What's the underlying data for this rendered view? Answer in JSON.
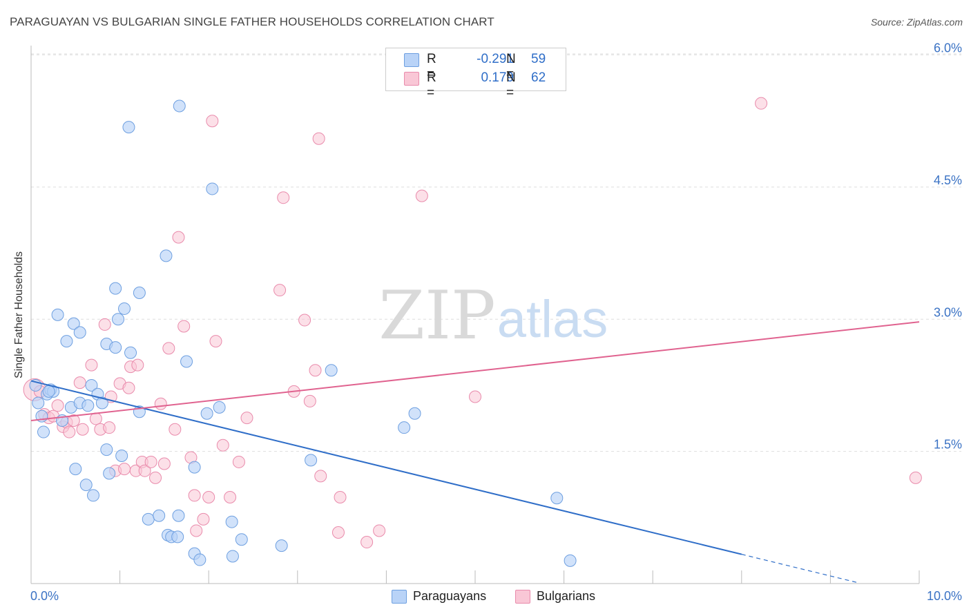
{
  "title": "PARAGUAYAN VS BULGARIAN SINGLE FATHER HOUSEHOLDS CORRELATION CHART",
  "source": "Source: ZipAtlas.com",
  "watermark": {
    "zip": "ZIP",
    "atlas": "atlas"
  },
  "colors": {
    "paraguayans_fill": "#b9d3f7",
    "paraguayans_stroke": "#6d9fe0",
    "paraguayans_line": "#2f6ec8",
    "bulgarians_fill": "#f9c7d6",
    "bulgarians_stroke": "#e98aab",
    "bulgarians_line": "#e0628f",
    "tick_label": "#3a72c4",
    "grid": "#dddddd"
  },
  "legend": {
    "rows": [
      {
        "label": "R =",
        "r_value": "-0.291",
        "n_label": "N =",
        "n_value": "59"
      },
      {
        "label": "R =",
        "r_value": "0.179",
        "n_label": "N =",
        "n_value": "62"
      }
    ]
  },
  "bottom_legend": {
    "paraguayans": "Paraguayans",
    "bulgarians": "Bulgarians"
  },
  "chart_data": {
    "type": "scatter",
    "title": "PARAGUAYAN VS BULGARIAN SINGLE FATHER HOUSEHOLDS CORRELATION CHART",
    "xlabel": "",
    "ylabel": "Single Father Households",
    "xlim": [
      0,
      10
    ],
    "ylim": [
      0,
      6.2
    ],
    "x_tick_labels": [
      "0.0%",
      "10.0%"
    ],
    "y_ticks": [
      1.5,
      3.0,
      4.5,
      6.0
    ],
    "y_tick_labels": [
      "1.5%",
      "3.0%",
      "4.5%",
      "6.0%"
    ],
    "grid": true,
    "series": [
      {
        "name": "Paraguayans",
        "points": [
          [
            0.05,
            2.25
          ],
          [
            0.08,
            2.05
          ],
          [
            0.12,
            1.9
          ],
          [
            0.14,
            1.72
          ],
          [
            0.18,
            2.15
          ],
          [
            0.22,
            2.2
          ],
          [
            0.25,
            2.18
          ],
          [
            0.3,
            3.05
          ],
          [
            0.35,
            1.85
          ],
          [
            0.4,
            2.75
          ],
          [
            0.45,
            2.0
          ],
          [
            0.48,
            2.95
          ],
          [
            0.5,
            1.3
          ],
          [
            0.55,
            2.05
          ],
          [
            0.55,
            2.85
          ],
          [
            0.62,
            1.12
          ],
          [
            0.64,
            2.02
          ],
          [
            0.68,
            2.25
          ],
          [
            0.7,
            1.0
          ],
          [
            0.75,
            2.15
          ],
          [
            0.8,
            2.05
          ],
          [
            0.85,
            1.52
          ],
          [
            0.85,
            2.72
          ],
          [
            0.88,
            1.25
          ],
          [
            0.95,
            3.35
          ],
          [
            0.95,
            2.68
          ],
          [
            0.98,
            3.0
          ],
          [
            1.02,
            1.45
          ],
          [
            1.05,
            3.12
          ],
          [
            1.1,
            5.18
          ],
          [
            1.12,
            2.62
          ],
          [
            1.22,
            1.95
          ],
          [
            1.22,
            3.3
          ],
          [
            1.32,
            0.73
          ],
          [
            1.44,
            0.77
          ],
          [
            1.52,
            3.72
          ],
          [
            1.54,
            0.55
          ],
          [
            1.58,
            0.53
          ],
          [
            1.66,
            0.77
          ],
          [
            1.67,
            5.42
          ],
          [
            1.75,
            2.52
          ],
          [
            1.84,
            1.32
          ],
          [
            1.84,
            0.34
          ],
          [
            1.9,
            0.27
          ],
          [
            1.98,
            1.93
          ],
          [
            2.04,
            4.48
          ],
          [
            2.12,
            2.0
          ],
          [
            2.26,
            0.7
          ],
          [
            2.27,
            0.31
          ],
          [
            2.37,
            0.5
          ],
          [
            2.82,
            0.43
          ],
          [
            3.15,
            1.4
          ],
          [
            3.38,
            2.42
          ],
          [
            4.2,
            1.77
          ],
          [
            4.32,
            1.93
          ],
          [
            5.92,
            0.97
          ],
          [
            6.07,
            0.26
          ],
          [
            1.65,
            0.53
          ],
          [
            0.2,
            2.18
          ]
        ]
      },
      {
        "name": "Bulgarians",
        "points": [
          [
            0.04,
            2.2
          ],
          [
            0.1,
            2.18
          ],
          [
            0.15,
            1.92
          ],
          [
            0.2,
            1.88
          ],
          [
            0.25,
            1.9
          ],
          [
            0.3,
            2.02
          ],
          [
            0.36,
            1.78
          ],
          [
            0.4,
            1.83
          ],
          [
            0.43,
            1.72
          ],
          [
            0.48,
            1.85
          ],
          [
            0.55,
            2.28
          ],
          [
            0.58,
            1.75
          ],
          [
            0.68,
            2.48
          ],
          [
            0.73,
            1.87
          ],
          [
            0.78,
            1.75
          ],
          [
            0.83,
            2.94
          ],
          [
            0.88,
            1.77
          ],
          [
            0.9,
            2.12
          ],
          [
            0.95,
            1.28
          ],
          [
            1.0,
            2.27
          ],
          [
            1.05,
            1.3
          ],
          [
            1.1,
            2.22
          ],
          [
            1.12,
            2.46
          ],
          [
            1.18,
            1.28
          ],
          [
            1.2,
            2.48
          ],
          [
            1.25,
            1.38
          ],
          [
            1.28,
            1.28
          ],
          [
            1.35,
            1.38
          ],
          [
            1.4,
            1.2
          ],
          [
            1.46,
            2.04
          ],
          [
            1.5,
            1.36
          ],
          [
            1.55,
            2.67
          ],
          [
            1.62,
            1.75
          ],
          [
            1.66,
            3.93
          ],
          [
            1.72,
            2.92
          ],
          [
            1.8,
            1.43
          ],
          [
            1.84,
            1.0
          ],
          [
            1.86,
            0.6
          ],
          [
            1.94,
            0.73
          ],
          [
            2.0,
            0.98
          ],
          [
            2.04,
            5.25
          ],
          [
            2.08,
            2.75
          ],
          [
            2.16,
            1.57
          ],
          [
            2.24,
            0.98
          ],
          [
            2.34,
            1.38
          ],
          [
            2.43,
            1.88
          ],
          [
            2.8,
            3.33
          ],
          [
            2.84,
            4.38
          ],
          [
            2.96,
            2.18
          ],
          [
            3.08,
            2.99
          ],
          [
            3.14,
            2.07
          ],
          [
            3.2,
            2.42
          ],
          [
            3.24,
            5.05
          ],
          [
            3.26,
            1.22
          ],
          [
            3.46,
            0.58
          ],
          [
            3.48,
            0.98
          ],
          [
            3.78,
            0.47
          ],
          [
            3.92,
            0.6
          ],
          [
            4.4,
            4.4
          ],
          [
            5.0,
            2.12
          ],
          [
            8.22,
            5.45
          ],
          [
            9.96,
            1.2
          ]
        ]
      }
    ],
    "trend_lines": [
      {
        "series": "Paraguayans",
        "x1": 0,
        "y1": 2.3,
        "x2": 10,
        "y2": -0.16,
        "solid_until_x": 8.0
      },
      {
        "series": "Bulgarians",
        "x1": 0,
        "y1": 1.85,
        "x2": 10,
        "y2": 2.97
      }
    ]
  }
}
